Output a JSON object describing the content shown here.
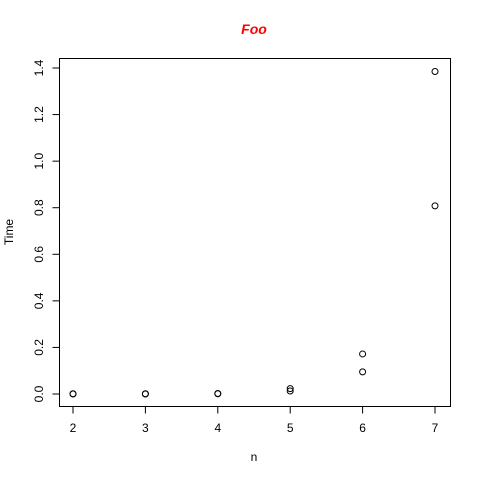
{
  "chart_data": {
    "type": "scatter",
    "title": "Foo",
    "title_color": "#ff0000",
    "xlabel": "n",
    "ylabel": "Time",
    "xlim": [
      2,
      7
    ],
    "ylim": [
      0,
      1.4
    ],
    "x_ticks": [
      "2",
      "3",
      "4",
      "5",
      "6",
      "7"
    ],
    "y_ticks": [
      "0.0",
      "0.2",
      "0.4",
      "0.6",
      "0.8",
      "1.0",
      "1.2",
      "1.4"
    ],
    "grid": false,
    "marker": "open-circle",
    "series": [
      {
        "points": [
          {
            "x": 2,
            "y": 0.0
          },
          {
            "x": 2,
            "y": 0.001
          },
          {
            "x": 3,
            "y": 0.0
          },
          {
            "x": 3,
            "y": 0.001
          },
          {
            "x": 4,
            "y": 0.001
          },
          {
            "x": 4,
            "y": 0.002
          },
          {
            "x": 5,
            "y": 0.013
          },
          {
            "x": 5,
            "y": 0.023
          },
          {
            "x": 6,
            "y": 0.095
          },
          {
            "x": 6,
            "y": 0.172
          },
          {
            "x": 7,
            "y": 0.808
          },
          {
            "x": 7,
            "y": 1.385
          }
        ]
      }
    ]
  }
}
